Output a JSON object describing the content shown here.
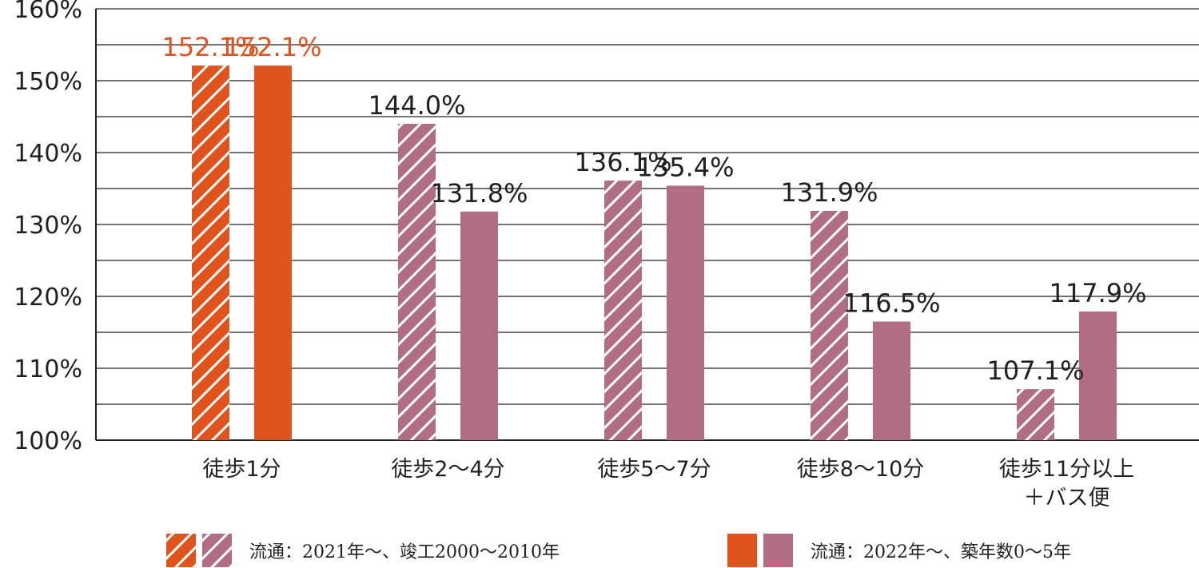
{
  "chart_data": {
    "type": "bar",
    "categories": [
      "徒歩1分",
      "徒歩2～4分",
      "徒歩5～7分",
      "徒歩8～10分",
      "徒歩11分以上\n＋バス便"
    ],
    "series": [
      {
        "name": "流通：2021年～、竣工2000～2010年",
        "values": [
          152.1,
          144.0,
          136.1,
          131.9,
          107.1
        ],
        "labels": [
          "152.1%",
          "144.0%",
          "136.1%",
          "131.9%",
          "107.1%"
        ],
        "pattern": "hatched"
      },
      {
        "name": "流通：2022年～、築年数0～5年",
        "values": [
          152.1,
          131.8,
          135.4,
          116.5,
          117.9
        ],
        "labels": [
          "152.1%",
          "131.8%",
          "135.4%",
          "116.5%",
          "117.9%"
        ],
        "pattern": "solid"
      }
    ],
    "y_ticks": [
      "100%",
      "110%",
      "120%",
      "130%",
      "140%",
      "150%",
      "160%"
    ],
    "ylim": [
      100,
      160
    ],
    "grid": true,
    "legend_position": "bottom",
    "colors": {
      "highlight": "#e0531c",
      "default": "#b06d83",
      "grid": "#231f20",
      "text": "#231f20"
    },
    "highlight_category_index": 0
  }
}
